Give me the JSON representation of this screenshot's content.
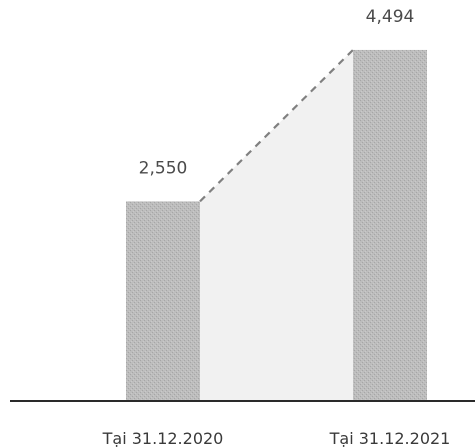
{
  "chart_data": {
    "type": "bar",
    "categories": [
      "Tại 31.12.2020",
      "Tại 31.12.2021"
    ],
    "values": [
      2550,
      4494
    ],
    "value_labels": [
      "2,550",
      "4,494"
    ],
    "title": "",
    "xlabel": "",
    "ylabel": "",
    "ylim": [
      0,
      4750
    ],
    "grid": false,
    "legend": "none",
    "connector": "dashed-line",
    "colors": {
      "bar": "#bdbdbd",
      "bar_texture": "#a8a8a8",
      "shade": "#f1f1f1",
      "connector": "#808080",
      "axis": "#2a2a2a"
    }
  }
}
